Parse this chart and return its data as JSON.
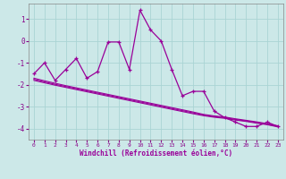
{
  "xlabel": "Windchill (Refroidissement éolien,°C)",
  "bg_color": "#cce8e8",
  "line_color": "#990099",
  "grid_color": "#aad4d4",
  "hours": [
    0,
    1,
    2,
    3,
    4,
    5,
    6,
    7,
    8,
    9,
    10,
    11,
    12,
    13,
    14,
    15,
    16,
    17,
    18,
    19,
    20,
    21,
    22,
    23
  ],
  "main_data": [
    -1.5,
    -1.0,
    -1.8,
    -1.3,
    -0.8,
    -1.7,
    -1.4,
    -0.05,
    -0.05,
    -1.3,
    1.4,
    0.5,
    0.0,
    -1.3,
    -2.5,
    -2.3,
    -2.3,
    -3.2,
    -3.5,
    -3.7,
    -3.9,
    -3.9,
    -3.7,
    -3.9
  ],
  "trend1": [
    -1.75,
    -1.87,
    -1.98,
    -2.08,
    -2.18,
    -2.28,
    -2.38,
    -2.48,
    -2.58,
    -2.68,
    -2.78,
    -2.88,
    -2.98,
    -3.08,
    -3.18,
    -3.28,
    -3.38,
    -3.45,
    -3.5,
    -3.58,
    -3.65,
    -3.72,
    -3.8,
    -3.9
  ],
  "trend2": [
    -1.8,
    -1.91,
    -2.02,
    -2.12,
    -2.22,
    -2.32,
    -2.42,
    -2.52,
    -2.62,
    -2.72,
    -2.82,
    -2.92,
    -3.02,
    -3.12,
    -3.22,
    -3.32,
    -3.41,
    -3.48,
    -3.53,
    -3.61,
    -3.67,
    -3.75,
    -3.82,
    -3.92
  ],
  "trend3": [
    -1.7,
    -1.82,
    -1.93,
    -2.04,
    -2.14,
    -2.24,
    -2.34,
    -2.44,
    -2.54,
    -2.64,
    -2.74,
    -2.84,
    -2.94,
    -3.04,
    -3.14,
    -3.24,
    -3.35,
    -3.42,
    -3.47,
    -3.55,
    -3.62,
    -3.69,
    -3.77,
    -3.87
  ],
  "ylim": [
    -4.5,
    1.7
  ],
  "xlim": [
    -0.5,
    23.5
  ],
  "yticks": [
    -4,
    -3,
    -2,
    -1,
    0,
    1
  ],
  "xticks": [
    0,
    1,
    2,
    3,
    4,
    5,
    6,
    7,
    8,
    9,
    10,
    11,
    12,
    13,
    14,
    15,
    16,
    17,
    18,
    19,
    20,
    21,
    22,
    23
  ],
  "tick_color": "#880088",
  "xlabel_fontsize": 5.5,
  "ytick_fontsize": 5.5,
  "xtick_fontsize": 4.5
}
